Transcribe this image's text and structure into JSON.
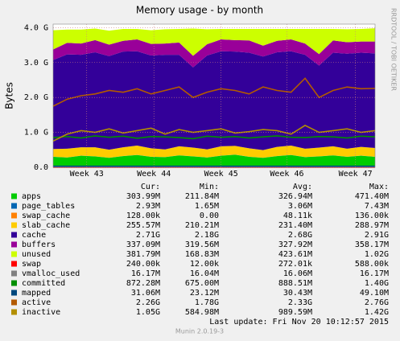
{
  "chart_data": {
    "type": "area",
    "title": "Memory usage - by month",
    "y_label": "Bytes",
    "watermark": "RRDTOOL / TOBI OETIKER",
    "last_update": "Last update:  Fri Nov 20 10:12:57 2015",
    "footer": "Munin 2.0.19-3",
    "grid": true,
    "x": [
      0,
      1,
      2,
      3,
      4,
      5,
      6,
      7,
      8,
      9,
      10,
      11,
      12,
      13,
      14,
      15,
      16,
      17,
      18,
      19,
      20,
      21,
      22,
      23
    ],
    "xlim": [
      0,
      23
    ],
    "xticks": [
      {
        "value": 2.4,
        "label": "Week 43"
      },
      {
        "value": 7.2,
        "label": "Week 44"
      },
      {
        "value": 12,
        "label": "Week 45"
      },
      {
        "value": 16.7,
        "label": "Week 46"
      },
      {
        "value": 21.6,
        "label": "Week 47"
      }
    ],
    "ylim": [
      0,
      4.1
    ],
    "yticks": [
      {
        "value": 0,
        "label": "0.0"
      },
      {
        "value": 1,
        "label": "1.0 G"
      },
      {
        "value": 2,
        "label": "2.0 G"
      },
      {
        "value": 3,
        "label": "3.0 G"
      },
      {
        "value": 4,
        "label": "4.0 G"
      }
    ],
    "stat_headers": [
      "Cur:",
      "Min:",
      "Avg:",
      "Max:"
    ],
    "series": [
      {
        "name": "apps",
        "color": "#00cc00",
        "stacked": true,
        "stats": {
          "cur": "303.99M",
          "min": "211.84M",
          "avg": "326.94M",
          "max": "471.40M"
        },
        "values": [
          0.3,
          0.28,
          0.33,
          0.31,
          0.27,
          0.32,
          0.35,
          0.3,
          0.29,
          0.34,
          0.31,
          0.28,
          0.33,
          0.36,
          0.3,
          0.27,
          0.32,
          0.35,
          0.29,
          0.31,
          0.34,
          0.3,
          0.33,
          0.3
        ]
      },
      {
        "name": "page_tables",
        "color": "#0066b3",
        "stacked": true,
        "stats": {
          "cur": "2.93M",
          "min": "1.65M",
          "avg": "3.06M",
          "max": "7.43M"
        },
        "values": [
          0.003,
          0.003,
          0.003,
          0.003,
          0.003,
          0.003,
          0.003,
          0.003,
          0.003,
          0.003,
          0.003,
          0.003,
          0.003,
          0.003,
          0.003,
          0.003,
          0.003,
          0.003,
          0.003,
          0.003,
          0.003,
          0.003,
          0.003,
          0.003
        ]
      },
      {
        "name": "swap_cache",
        "color": "#ff8000",
        "stacked": true,
        "stats": {
          "cur": "128.00k",
          "min": "0.00",
          "avg": "48.11k",
          "max": "136.00k"
        },
        "values": [
          0.0001,
          0.0001,
          0.0001,
          0.0001,
          0.0001,
          0.0001,
          0.0001,
          0.0001,
          0.0001,
          0.0001,
          0.0001,
          0.0001,
          0.0001,
          0.0001,
          0.0001,
          0.0001,
          0.0001,
          0.0001,
          0.0001,
          0.0001,
          0.0001,
          0.0001,
          0.0001,
          0.0001
        ]
      },
      {
        "name": "slab_cache",
        "color": "#ffcc00",
        "stacked": true,
        "stats": {
          "cur": "255.57M",
          "min": "210.21M",
          "avg": "231.40M",
          "max": "288.97M"
        },
        "values": [
          0.22,
          0.25,
          0.24,
          0.26,
          0.23,
          0.25,
          0.27,
          0.24,
          0.22,
          0.26,
          0.25,
          0.23,
          0.27,
          0.25,
          0.24,
          0.22,
          0.26,
          0.27,
          0.24,
          0.25,
          0.26,
          0.23,
          0.25,
          0.25
        ]
      },
      {
        "name": "cache",
        "color": "#330099",
        "stacked": true,
        "stats": {
          "cur": "2.71G",
          "min": "2.18G",
          "avg": "2.68G",
          "max": "2.91G"
        },
        "values": [
          2.55,
          2.7,
          2.65,
          2.72,
          2.68,
          2.74,
          2.7,
          2.66,
          2.71,
          2.62,
          2.3,
          2.69,
          2.72,
          2.7,
          2.74,
          2.68,
          2.71,
          2.7,
          2.69,
          2.35,
          2.68,
          2.72,
          2.7,
          2.71
        ]
      },
      {
        "name": "buffers",
        "color": "#990099",
        "stacked": true,
        "stats": {
          "cur": "337.09M",
          "min": "319.56M",
          "avg": "327.92M",
          "max": "358.17M"
        },
        "values": [
          0.3,
          0.33,
          0.32,
          0.35,
          0.33,
          0.31,
          0.34,
          0.33,
          0.32,
          0.35,
          0.33,
          0.32,
          0.34,
          0.33,
          0.35,
          0.31,
          0.33,
          0.34,
          0.32,
          0.33,
          0.35,
          0.33,
          0.32,
          0.34
        ]
      },
      {
        "name": "unused",
        "color": "#ccff00",
        "stacked": true,
        "stats": {
          "cur": "381.79M",
          "min": "168.83M",
          "avg": "423.61M",
          "max": "1.02G"
        },
        "values": [
          0.55,
          0.38,
          0.4,
          0.33,
          0.4,
          0.34,
          0.3,
          0.39,
          0.41,
          0.39,
          0.78,
          0.43,
          0.3,
          0.32,
          0.33,
          0.48,
          0.34,
          0.3,
          0.42,
          0.72,
          0.33,
          0.37,
          0.36,
          0.38
        ]
      },
      {
        "name": "swap",
        "color": "#ff0000",
        "stacked": false,
        "stats": {
          "cur": "240.00k",
          "min": "12.00k",
          "avg": "272.01k",
          "max": "588.00k"
        },
        "values": [
          0.0002,
          0.0002,
          0.0002,
          0.0002,
          0.0002,
          0.0002,
          0.0002,
          0.0002,
          0.0002,
          0.0002,
          0.0002,
          0.0002,
          0.0002,
          0.0002,
          0.0002,
          0.0002,
          0.0002,
          0.0002,
          0.0002,
          0.0002,
          0.0002,
          0.0002,
          0.0002,
          0.0002
        ]
      },
      {
        "name": "vmalloc_used",
        "color": "#808080",
        "stacked": false,
        "stats": {
          "cur": "16.17M",
          "min": "16.04M",
          "avg": "16.06M",
          "max": "16.17M"
        },
        "values": [
          0.016,
          0.016,
          0.016,
          0.016,
          0.016,
          0.016,
          0.016,
          0.016,
          0.016,
          0.016,
          0.016,
          0.016,
          0.016,
          0.016,
          0.016,
          0.016,
          0.016,
          0.016,
          0.016,
          0.016,
          0.016,
          0.016,
          0.016,
          0.016
        ]
      },
      {
        "name": "committed",
        "color": "#008f00",
        "stacked": false,
        "stats": {
          "cur": "872.28M",
          "min": "675.00M",
          "avg": "888.51M",
          "max": "1.40G"
        },
        "values": [
          0.85,
          0.88,
          0.84,
          0.9,
          0.86,
          0.89,
          0.83,
          0.88,
          0.87,
          0.85,
          0.82,
          0.89,
          0.86,
          0.88,
          0.84,
          0.87,
          0.9,
          0.86,
          0.85,
          0.88,
          0.87,
          0.84,
          0.89,
          0.87
        ]
      },
      {
        "name": "mapped",
        "color": "#00487d",
        "stacked": false,
        "stats": {
          "cur": "31.06M",
          "min": "23.12M",
          "avg": "30.43M",
          "max": "49.10M"
        },
        "values": [
          0.03,
          0.03,
          0.03,
          0.03,
          0.03,
          0.03,
          0.03,
          0.03,
          0.03,
          0.03,
          0.03,
          0.03,
          0.03,
          0.03,
          0.03,
          0.03,
          0.03,
          0.03,
          0.03,
          0.03,
          0.03,
          0.03,
          0.03,
          0.03
        ]
      },
      {
        "name": "active",
        "color": "#b35a00",
        "stacked": false,
        "stats": {
          "cur": "2.26G",
          "min": "1.78G",
          "avg": "2.33G",
          "max": "2.76G"
        },
        "values": [
          1.75,
          1.95,
          2.05,
          2.1,
          2.2,
          2.15,
          2.25,
          2.1,
          2.2,
          2.3,
          2.0,
          2.15,
          2.25,
          2.2,
          2.1,
          2.3,
          2.2,
          2.15,
          2.55,
          2.0,
          2.2,
          2.3,
          2.25,
          2.26
        ]
      },
      {
        "name": "inactive",
        "color": "#b38f00",
        "stacked": false,
        "stats": {
          "cur": "1.05G",
          "min": "584.98M",
          "avg": "989.59M",
          "max": "1.42G"
        },
        "values": [
          0.75,
          0.95,
          1.05,
          1.0,
          1.1,
          0.98,
          1.05,
          1.12,
          0.95,
          1.08,
          1.0,
          1.05,
          1.1,
          0.98,
          1.02,
          1.08,
          1.05,
          0.95,
          1.2,
          1.0,
          1.05,
          1.1,
          1.0,
          1.05
        ]
      }
    ]
  }
}
